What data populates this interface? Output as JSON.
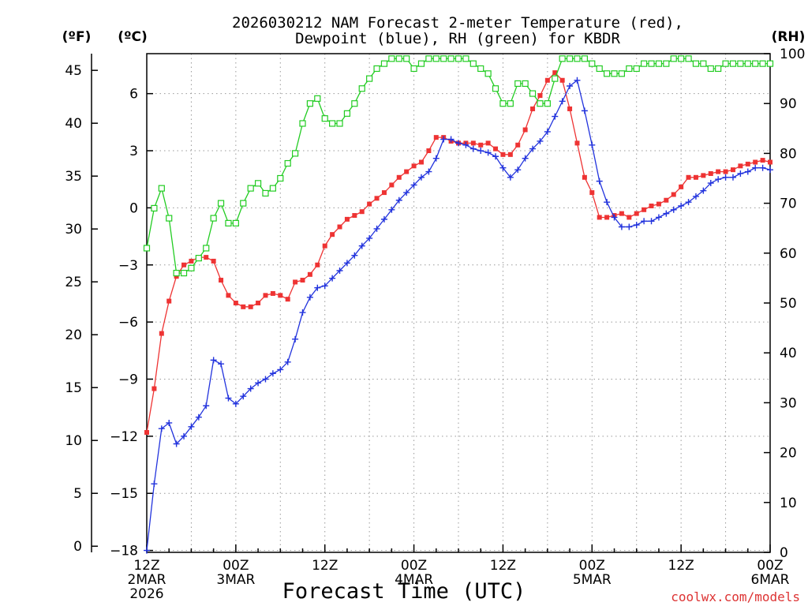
{
  "chart_data": {
    "type": "line",
    "title_line1": "2026030212 NAM Forecast 2-meter Temperature (red),",
    "title_line2": "Dewpoint (blue), RH (green) for KBDR",
    "xlabel": "Forecast Time (UTC)",
    "credit": "coolwx.com/models",
    "unit_f": "(ºF)",
    "unit_c": "(ºC)",
    "unit_rh": "(RH)",
    "x_hours_range": [
      0,
      84
    ],
    "celsius_range": [
      -18.1,
      8.1
    ],
    "rh_range": [
      0,
      100
    ],
    "fahrenheit_ticks": [
      0,
      5,
      10,
      15,
      20,
      25,
      30,
      35,
      40,
      45
    ],
    "fahrenheit_labels": [
      "0",
      "5",
      "10",
      "15",
      "20",
      "25",
      "30",
      "35",
      "40",
      "45"
    ],
    "celsius_ticks": [
      -18,
      -15,
      -12,
      -9,
      -6,
      -3,
      0,
      3,
      6
    ],
    "celsius_labels": [
      "−18",
      "−15",
      "−12",
      "−9",
      "−6",
      "−3",
      "0",
      "3",
      "6"
    ],
    "rh_ticks": [
      0,
      10,
      20,
      30,
      40,
      50,
      60,
      70,
      80,
      90,
      100
    ],
    "rh_labels": [
      "0",
      "10",
      "20",
      "30",
      "40",
      "50",
      "60",
      "70",
      "80",
      "90",
      "100"
    ],
    "x_ticks": [
      {
        "hour": 0,
        "lines": [
          "12Z",
          "2MAR",
          "2026"
        ]
      },
      {
        "hour": 12,
        "lines": [
          "00Z",
          "3MAR"
        ]
      },
      {
        "hour": 24,
        "lines": [
          "12Z"
        ]
      },
      {
        "hour": 36,
        "lines": [
          "00Z",
          "4MAR"
        ]
      },
      {
        "hour": 48,
        "lines": [
          "12Z"
        ]
      },
      {
        "hour": 60,
        "lines": [
          "00Z",
          "5MAR"
        ]
      },
      {
        "hour": 72,
        "lines": [
          "12Z"
        ]
      },
      {
        "hour": 84,
        "lines": [
          "00Z",
          "6MAR"
        ]
      }
    ],
    "x_hours": [
      0,
      1,
      2,
      3,
      4,
      5,
      6,
      7,
      8,
      9,
      10,
      11,
      12,
      13,
      14,
      15,
      16,
      17,
      18,
      19,
      20,
      21,
      22,
      23,
      24,
      25,
      26,
      27,
      28,
      29,
      30,
      31,
      32,
      33,
      34,
      35,
      36,
      37,
      38,
      39,
      40,
      41,
      42,
      43,
      44,
      45,
      46,
      47,
      48,
      49,
      50,
      51,
      52,
      53,
      54,
      55,
      56,
      57,
      58,
      59,
      60,
      61,
      62,
      63,
      64,
      65,
      66,
      67,
      68,
      69,
      70,
      71,
      72,
      73,
      74,
      75,
      76,
      77,
      78,
      79,
      80,
      81,
      82,
      83,
      84
    ],
    "series": [
      {
        "name": "Temperature",
        "unit": "C",
        "color": "#ee3333",
        "marker": "filled-square",
        "values": [
          -11.8,
          -9.5,
          -6.6,
          -4.9,
          -3.6,
          -3.0,
          -2.8,
          -2.6,
          -2.6,
          -2.8,
          -3.8,
          -4.6,
          -5.0,
          -5.2,
          -5.2,
          -5.0,
          -4.6,
          -4.5,
          -4.6,
          -4.8,
          -3.9,
          -3.8,
          -3.5,
          -3.0,
          -2.0,
          -1.4,
          -1.0,
          -0.6,
          -0.4,
          -0.2,
          0.2,
          0.5,
          0.8,
          1.2,
          1.6,
          1.9,
          2.2,
          2.4,
          3.0,
          3.7,
          3.7,
          3.5,
          3.4,
          3.4,
          3.4,
          3.3,
          3.4,
          3.1,
          2.8,
          2.8,
          3.3,
          4.1,
          5.2,
          5.9,
          6.7,
          7.1,
          6.7,
          5.2,
          3.4,
          1.6,
          0.8,
          -0.5,
          -0.5,
          -0.4,
          -0.3,
          -0.5,
          -0.3,
          -0.1,
          0.1,
          0.2,
          0.4,
          0.7,
          1.1,
          1.6,
          1.6,
          1.7,
          1.8,
          1.9,
          1.9,
          2.0,
          2.2,
          2.3,
          2.4,
          2.5,
          2.4
        ]
      },
      {
        "name": "Dewpoint",
        "unit": "C",
        "color": "#2233dd",
        "marker": "plus",
        "values": [
          -18.0,
          -14.5,
          -11.6,
          -11.3,
          -12.4,
          -12.0,
          -11.5,
          -11.0,
          -10.4,
          -8.0,
          -8.2,
          -10.0,
          -10.3,
          -9.9,
          -9.5,
          -9.2,
          -9.0,
          -8.7,
          -8.5,
          -8.1,
          -6.9,
          -5.5,
          -4.7,
          -4.2,
          -4.1,
          -3.7,
          -3.3,
          -2.9,
          -2.5,
          -2.0,
          -1.6,
          -1.1,
          -0.6,
          -0.1,
          0.4,
          0.8,
          1.2,
          1.6,
          1.9,
          2.6,
          3.6,
          3.6,
          3.4,
          3.3,
          3.1,
          3.0,
          2.9,
          2.7,
          2.1,
          1.6,
          2.0,
          2.6,
          3.1,
          3.5,
          4.0,
          4.8,
          5.6,
          6.4,
          6.7,
          5.1,
          3.3,
          1.4,
          0.3,
          -0.5,
          -1.0,
          -1.0,
          -0.9,
          -0.7,
          -0.7,
          -0.5,
          -0.3,
          -0.1,
          0.1,
          0.3,
          0.6,
          0.9,
          1.3,
          1.5,
          1.6,
          1.6,
          1.8,
          1.9,
          2.1,
          2.1,
          2.0
        ]
      },
      {
        "name": "RH",
        "unit": "%",
        "color": "#22cc22",
        "marker": "open-square",
        "values": [
          61,
          69,
          73,
          67,
          56,
          56,
          57,
          59,
          61,
          67,
          70,
          66,
          66,
          70,
          73,
          74,
          72,
          73,
          75,
          78,
          80,
          86,
          90,
          91,
          87,
          86,
          86,
          88,
          90,
          93,
          95,
          97,
          98,
          99,
          99,
          99,
          97,
          98,
          99,
          99,
          99,
          99,
          99,
          99,
          98,
          97,
          96,
          93,
          90,
          90,
          94,
          94,
          92,
          90,
          90,
          95,
          99,
          99,
          99,
          99,
          98,
          97,
          96,
          96,
          96,
          97,
          97,
          98,
          98,
          98,
          98,
          99,
          99,
          99,
          98,
          98,
          97,
          97,
          98,
          98,
          98,
          98,
          98,
          98,
          98
        ]
      }
    ]
  }
}
